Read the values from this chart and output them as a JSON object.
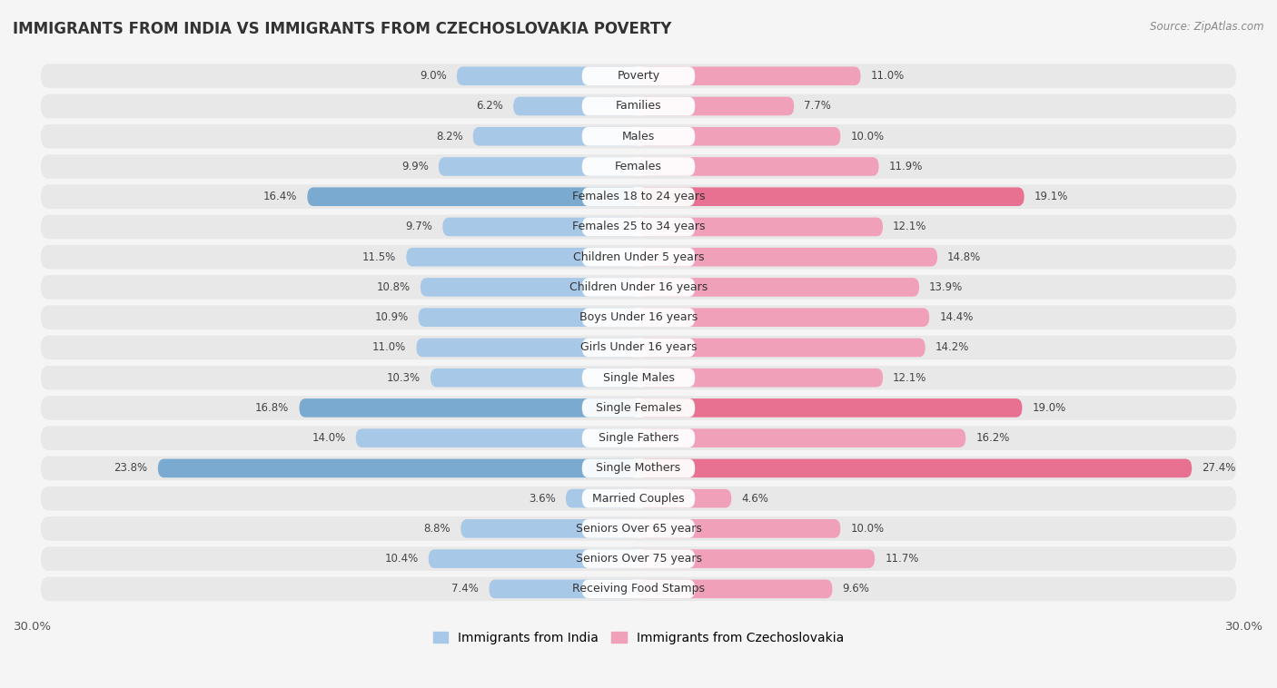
{
  "title": "IMMIGRANTS FROM INDIA VS IMMIGRANTS FROM CZECHOSLOVAKIA POVERTY",
  "source": "Source: ZipAtlas.com",
  "categories": [
    "Poverty",
    "Families",
    "Males",
    "Females",
    "Females 18 to 24 years",
    "Females 25 to 34 years",
    "Children Under 5 years",
    "Children Under 16 years",
    "Boys Under 16 years",
    "Girls Under 16 years",
    "Single Males",
    "Single Females",
    "Single Fathers",
    "Single Mothers",
    "Married Couples",
    "Seniors Over 65 years",
    "Seniors Over 75 years",
    "Receiving Food Stamps"
  ],
  "india_values": [
    9.0,
    6.2,
    8.2,
    9.9,
    16.4,
    9.7,
    11.5,
    10.8,
    10.9,
    11.0,
    10.3,
    16.8,
    14.0,
    23.8,
    3.6,
    8.8,
    10.4,
    7.4
  ],
  "czech_values": [
    11.0,
    7.7,
    10.0,
    11.9,
    19.1,
    12.1,
    14.8,
    13.9,
    14.4,
    14.2,
    12.1,
    19.0,
    16.2,
    27.4,
    4.6,
    10.0,
    11.7,
    9.6
  ],
  "india_color": "#a8c8e8",
  "czech_color": "#f0a0b8",
  "india_highlight_indices": [
    4,
    11,
    13
  ],
  "czech_highlight_indices": [
    4,
    11,
    13
  ],
  "india_highlight_color": "#7aaad0",
  "czech_highlight_color": "#e87090",
  "row_bg_color": "#e8e8e8",
  "outer_bg_color": "#f5f5f5",
  "axis_limit": 30.0,
  "legend_india": "Immigrants from India",
  "legend_czech": "Immigrants from Czechoslovakia",
  "title_fontsize": 12,
  "label_fontsize": 9,
  "value_fontsize": 8.5
}
